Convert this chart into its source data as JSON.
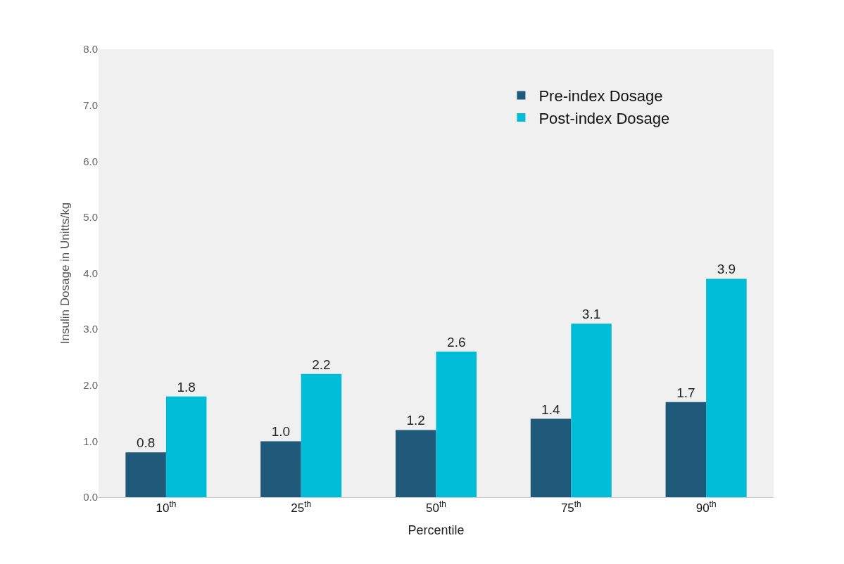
{
  "chart_data": {
    "type": "bar",
    "xlabel": "Percentile",
    "ylabel": "Insulin Dosage in Unitts/kg",
    "categories": [
      "10$^{th}$",
      "25$^{th}$",
      "50$^{th}$",
      "75$^{th}$",
      "90$^{th}$"
    ],
    "series": [
      {
        "name": "Pre-index Dosage",
        "color": "#1f5a7a",
        "values": [
          0.8,
          1.0,
          1.2,
          1.4,
          1.7
        ],
        "value_labels": [
          "0.8",
          "1.0",
          "1.2",
          "1.4",
          "1.7"
        ]
      },
      {
        "name": "Post-index Dosage",
        "color": "#00bcd6",
        "values": [
          1.8,
          2.2,
          2.6,
          3.1,
          3.9
        ],
        "value_labels": [
          "1.8",
          "2.2",
          "2.6",
          "3.1",
          "3.9"
        ]
      }
    ],
    "ylim": [
      0,
      8
    ],
    "yticks": [
      {
        "value": 0,
        "label": "0.0"
      },
      {
        "value": 1,
        "label": "1.0"
      },
      {
        "value": 2,
        "label": "2.0"
      },
      {
        "value": 3,
        "label": "3.0"
      },
      {
        "value": 4,
        "label": "4.0"
      },
      {
        "value": 5,
        "label": "5.0"
      },
      {
        "value": 6,
        "label": "6.0"
      },
      {
        "value": 7,
        "label": "7.0"
      },
      {
        "value": 8,
        "label": "8.0"
      }
    ],
    "grid": false,
    "legend": "top right"
  }
}
